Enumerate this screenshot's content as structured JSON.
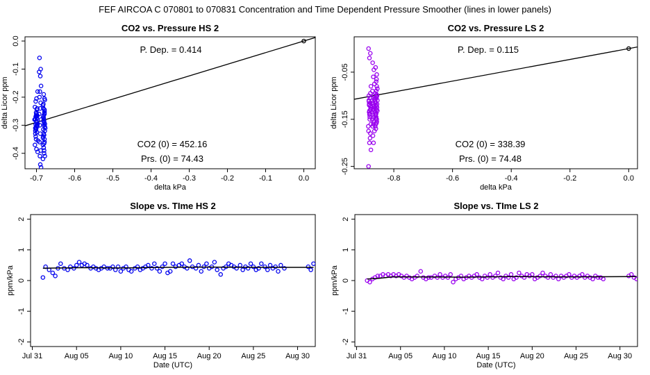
{
  "main_title": "FEF   AIRCOA C   070801 to 070831   Concentration and Time Dependent Pressure Smoother (lines in lower panels)",
  "chart_data": [
    {
      "id": "hs-pressure",
      "type": "scatter",
      "title": "CO2 vs. Pressure HS 2",
      "xlabel": "delta kPa",
      "ylabel": "delta Licor ppm",
      "xlim": [
        -0.73,
        0.03
      ],
      "ylim": [
        -0.455,
        0.015
      ],
      "xticks": [
        -0.7,
        -0.6,
        -0.5,
        -0.4,
        -0.3,
        -0.2,
        -0.1,
        0.0
      ],
      "xtick_labels": [
        "-0.7",
        "-0.6",
        "-0.5",
        "-0.4",
        "-0.3",
        "-0.2",
        "-0.1",
        "0.0"
      ],
      "yticks": [
        0.0,
        -0.1,
        -0.2,
        -0.3,
        -0.4
      ],
      "ytick_labels": [
        "0.0",
        "-0.1",
        "-0.2",
        "-0.3",
        "-0.4"
      ],
      "color": "#0000ee",
      "fit_line": {
        "slope": 0.414,
        "intercept": 0.0
      },
      "origin_point": [
        0.0,
        0.0
      ],
      "annotations": {
        "pdep": "P. Dep. =  0.414",
        "co2": "CO2 (0) =  452.16",
        "prs": "Prs. (0) = 74.43"
      },
      "x": [
        -0.701,
        -0.698,
        -0.705,
        -0.697,
        -0.703,
        -0.699,
        -0.702,
        -0.696,
        -0.704,
        -0.7,
        -0.701,
        -0.698,
        -0.703,
        -0.699,
        -0.702,
        -0.7,
        -0.697,
        -0.704,
        -0.701,
        -0.699,
        -0.7,
        -0.698,
        -0.703,
        -0.701,
        -0.699,
        -0.702,
        -0.7,
        -0.697,
        -0.704,
        -0.701,
        -0.699,
        -0.702,
        -0.698,
        -0.701,
        -0.7,
        -0.703,
        -0.699,
        -0.692,
        -0.689,
        -0.693,
        -0.69,
        -0.688,
        -0.691,
        -0.692,
        -0.689,
        -0.69,
        -0.693,
        -0.688,
        -0.691,
        -0.69,
        -0.692,
        -0.689,
        -0.691,
        -0.69,
        -0.688,
        -0.681,
        -0.678,
        -0.683,
        -0.679,
        -0.682,
        -0.68,
        -0.677,
        -0.681,
        -0.679,
        -0.683,
        -0.68,
        -0.678,
        -0.682,
        -0.679,
        -0.681,
        -0.68,
        -0.678,
        -0.682,
        -0.679,
        -0.681,
        -0.68,
        -0.683,
        -0.679,
        -0.681,
        -0.678,
        -0.682,
        -0.68,
        -0.679,
        -0.681,
        -0.68,
        -0.678,
        -0.682,
        -0.679,
        -0.683,
        -0.68
      ],
      "y": [
        -0.255,
        -0.265,
        -0.28,
        -0.295,
        -0.31,
        -0.325,
        -0.34,
        -0.355,
        -0.37,
        -0.385,
        -0.27,
        -0.3,
        -0.33,
        -0.245,
        -0.215,
        -0.205,
        -0.18,
        -0.28,
        -0.31,
        -0.29,
        -0.26,
        -0.24,
        -0.32,
        -0.35,
        -0.3,
        -0.27,
        -0.285,
        -0.395,
        -0.235,
        -0.265,
        -0.275,
        -0.298,
        -0.305,
        -0.315,
        -0.288,
        -0.278,
        -0.268,
        -0.06,
        -0.1,
        -0.11,
        -0.125,
        -0.16,
        -0.18,
        -0.2,
        -0.22,
        -0.24,
        -0.26,
        -0.28,
        -0.3,
        -0.33,
        -0.36,
        -0.39,
        -0.41,
        -0.44,
        -0.45,
        -0.19,
        -0.21,
        -0.23,
        -0.25,
        -0.27,
        -0.29,
        -0.31,
        -0.33,
        -0.35,
        -0.37,
        -0.39,
        -0.41,
        -0.24,
        -0.26,
        -0.28,
        -0.3,
        -0.32,
        -0.34,
        -0.36,
        -0.38,
        -0.4,
        -0.42,
        -0.255,
        -0.275,
        -0.295,
        -0.315,
        -0.335,
        -0.245,
        -0.265,
        -0.285,
        -0.305,
        -0.225,
        -0.205,
        -0.345,
        -0.365
      ]
    },
    {
      "id": "ls-pressure",
      "type": "scatter",
      "title": "CO2 vs. Pressure LS 2",
      "xlabel": "delta kPa",
      "ylabel": "delta Licor ppm",
      "xlim": [
        -0.935,
        0.03
      ],
      "ylim": [
        -0.255,
        0.025
      ],
      "xticks": [
        -0.8,
        -0.6,
        -0.4,
        -0.2,
        0.0
      ],
      "xtick_labels": [
        "-0.8",
        "-0.6",
        "-0.4",
        "-0.2",
        "0.0"
      ],
      "yticks": [
        -0.05,
        -0.15,
        -0.25
      ],
      "ytick_labels": [
        "-0.05",
        "-0.15",
        "-0.25"
      ],
      "color": "#9900ee",
      "fit_line": {
        "slope": 0.115,
        "intercept": 0.0
      },
      "origin_point": [
        0.0,
        0.0
      ],
      "annotations": {
        "pdep": "P. Dep. =  0.115",
        "co2": "CO2 (0) =  338.39",
        "prs": "Prs. (0) = 74.48"
      },
      "x": [
        -0.886,
        -0.88,
        -0.883,
        -0.878,
        -0.885,
        -0.881,
        -0.879,
        -0.884,
        -0.882,
        -0.887,
        -0.88,
        -0.883,
        -0.878,
        -0.886,
        -0.881,
        -0.884,
        -0.879,
        -0.882,
        -0.885,
        -0.88,
        -0.883,
        -0.878,
        -0.886,
        -0.881,
        -0.884,
        -0.879,
        -0.882,
        -0.885,
        -0.88,
        -0.883,
        -0.872,
        -0.868,
        -0.87,
        -0.866,
        -0.873,
        -0.869,
        -0.871,
        -0.867,
        -0.874,
        -0.87,
        -0.868,
        -0.872,
        -0.866,
        -0.871,
        -0.869,
        -0.873,
        -0.867,
        -0.87,
        -0.872,
        -0.868,
        -0.871,
        -0.869,
        -0.866,
        -0.873,
        -0.87,
        -0.862,
        -0.858,
        -0.86,
        -0.856,
        -0.863,
        -0.859,
        -0.861,
        -0.857,
        -0.862,
        -0.86,
        -0.858,
        -0.863,
        -0.856,
        -0.861,
        -0.859,
        -0.862,
        -0.857,
        -0.86,
        -0.858,
        -0.861,
        -0.863,
        -0.859,
        -0.856,
        -0.862,
        -0.86,
        -0.861,
        -0.858,
        -0.859,
        -0.857,
        -0.862,
        -0.86,
        -0.863,
        -0.858,
        -0.861,
        -0.859
      ],
      "y": [
        0.0,
        -0.01,
        -0.02,
        -0.08,
        -0.1,
        -0.115,
        -0.125,
        -0.135,
        -0.15,
        -0.165,
        -0.18,
        -0.2,
        -0.215,
        -0.25,
        -0.105,
        -0.12,
        -0.13,
        -0.145,
        -0.11,
        -0.095,
        -0.14,
        -0.16,
        -0.175,
        -0.19,
        -0.118,
        -0.128,
        -0.138,
        -0.112,
        -0.122,
        -0.132,
        -0.03,
        -0.045,
        -0.06,
        -0.075,
        -0.09,
        -0.105,
        -0.115,
        -0.125,
        -0.135,
        -0.145,
        -0.155,
        -0.165,
        -0.175,
        -0.185,
        -0.2,
        -0.11,
        -0.12,
        -0.13,
        -0.14,
        -0.1,
        -0.118,
        -0.128,
        -0.108,
        -0.15,
        -0.16,
        -0.04,
        -0.055,
        -0.07,
        -0.085,
        -0.095,
        -0.105,
        -0.115,
        -0.125,
        -0.135,
        -0.145,
        -0.155,
        -0.165,
        -0.11,
        -0.12,
        -0.13,
        -0.14,
        -0.1,
        -0.09,
        -0.15,
        -0.16,
        -0.112,
        -0.122,
        -0.132,
        -0.142,
        -0.102,
        -0.17,
        -0.08,
        -0.065,
        -0.118,
        -0.128,
        -0.138,
        -0.108,
        -0.098,
        -0.148,
        -0.158
      ]
    },
    {
      "id": "hs-time",
      "type": "line",
      "title": "Slope vs. TIme HS 2",
      "xlabel": "Date (UTC)",
      "ylabel": "ppm/kPa",
      "x_unit": "day of August 2007 (0 = Jul 31)",
      "xlim": [
        -0.2,
        32.0
      ],
      "ylim": [
        -2.15,
        2.15
      ],
      "xticks": [
        0,
        5,
        10,
        15,
        20,
        25,
        30
      ],
      "xtick_labels": [
        "Jul 31",
        "Aug 05",
        "Aug 10",
        "Aug 15",
        "Aug 20",
        "Aug 25",
        "Aug 30"
      ],
      "yticks": [
        -2,
        -1,
        0,
        1,
        2
      ],
      "ytick_labels": [
        "-2",
        "-1",
        "0",
        "1",
        "2"
      ],
      "color": "#0000ee",
      "points": [
        [
          1.2,
          0.1
        ],
        [
          1.5,
          0.45
        ],
        [
          1.9,
          0.35
        ],
        [
          2.3,
          0.25
        ],
        [
          2.6,
          0.15
        ],
        [
          2.9,
          0.4
        ],
        [
          3.2,
          0.55
        ],
        [
          3.6,
          0.4
        ],
        [
          4.0,
          0.35
        ],
        [
          4.3,
          0.45
        ],
        [
          4.7,
          0.4
        ],
        [
          5.0,
          0.5
        ],
        [
          5.3,
          0.6
        ],
        [
          5.6,
          0.5
        ],
        [
          5.9,
          0.55
        ],
        [
          6.2,
          0.5
        ],
        [
          6.6,
          0.4
        ],
        [
          6.9,
          0.45
        ],
        [
          7.2,
          0.4
        ],
        [
          7.5,
          0.35
        ],
        [
          7.8,
          0.4
        ],
        [
          8.1,
          0.45
        ],
        [
          8.5,
          0.4
        ],
        [
          8.8,
          0.4
        ],
        [
          9.1,
          0.45
        ],
        [
          9.4,
          0.35
        ],
        [
          9.7,
          0.45
        ],
        [
          10.0,
          0.3
        ],
        [
          10.3,
          0.4
        ],
        [
          10.6,
          0.45
        ],
        [
          10.9,
          0.35
        ],
        [
          11.2,
          0.3
        ],
        [
          11.6,
          0.4
        ],
        [
          11.9,
          0.45
        ],
        [
          12.2,
          0.35
        ],
        [
          12.5,
          0.4
        ],
        [
          12.8,
          0.45
        ],
        [
          13.1,
          0.5
        ],
        [
          13.5,
          0.4
        ],
        [
          13.8,
          0.55
        ],
        [
          14.1,
          0.4
        ],
        [
          14.4,
          0.3
        ],
        [
          14.7,
          0.45
        ],
        [
          15.0,
          0.55
        ],
        [
          15.3,
          0.25
        ],
        [
          15.6,
          0.3
        ],
        [
          15.9,
          0.55
        ],
        [
          16.2,
          0.45
        ],
        [
          16.6,
          0.5
        ],
        [
          16.9,
          0.55
        ],
        [
          17.2,
          0.45
        ],
        [
          17.5,
          0.4
        ],
        [
          17.8,
          0.65
        ],
        [
          18.1,
          0.45
        ],
        [
          18.5,
          0.4
        ],
        [
          18.8,
          0.5
        ],
        [
          19.1,
          0.3
        ],
        [
          19.4,
          0.45
        ],
        [
          19.7,
          0.55
        ],
        [
          20.0,
          0.4
        ],
        [
          20.3,
          0.45
        ],
        [
          20.6,
          0.6
        ],
        [
          20.9,
          0.35
        ],
        [
          21.3,
          0.2
        ],
        [
          21.6,
          0.4
        ],
        [
          21.9,
          0.45
        ],
        [
          22.2,
          0.55
        ],
        [
          22.5,
          0.5
        ],
        [
          22.8,
          0.45
        ],
        [
          23.1,
          0.4
        ],
        [
          23.5,
          0.5
        ],
        [
          23.8,
          0.35
        ],
        [
          24.1,
          0.45
        ],
        [
          24.4,
          0.4
        ],
        [
          24.7,
          0.55
        ],
        [
          25.0,
          0.45
        ],
        [
          25.3,
          0.35
        ],
        [
          25.6,
          0.4
        ],
        [
          25.9,
          0.55
        ],
        [
          26.3,
          0.45
        ],
        [
          26.6,
          0.35
        ],
        [
          26.9,
          0.5
        ],
        [
          27.2,
          0.4
        ],
        [
          27.5,
          0.45
        ],
        [
          27.8,
          0.3
        ],
        [
          28.1,
          0.5
        ],
        [
          28.5,
          0.4
        ],
        [
          31.2,
          0.45
        ],
        [
          31.5,
          0.35
        ],
        [
          31.8,
          0.55
        ]
      ],
      "smoother": [
        [
          1.2,
          0.4
        ],
        [
          3.0,
          0.41
        ],
        [
          6.0,
          0.42
        ],
        [
          10.0,
          0.41
        ],
        [
          15.0,
          0.43
        ],
        [
          20.0,
          0.44
        ],
        [
          25.0,
          0.43
        ],
        [
          31.8,
          0.43
        ]
      ]
    },
    {
      "id": "ls-time",
      "type": "line",
      "title": "Slope vs. TIme LS 2",
      "xlabel": "Date (UTC)",
      "ylabel": "ppm/kPa",
      "x_unit": "day of August 2007 (0 = Jul 31)",
      "xlim": [
        -0.2,
        32.0
      ],
      "ylim": [
        -2.15,
        2.15
      ],
      "xticks": [
        0,
        5,
        10,
        15,
        20,
        25,
        30
      ],
      "xtick_labels": [
        "Jul 31",
        "Aug 05",
        "Aug 10",
        "Aug 15",
        "Aug 20",
        "Aug 25",
        "Aug 30"
      ],
      "yticks": [
        -2,
        -1,
        0,
        1,
        2
      ],
      "ytick_labels": [
        "-2",
        "-1",
        "0",
        "1",
        "2"
      ],
      "color": "#9900ee",
      "points": [
        [
          1.2,
          0.0
        ],
        [
          1.5,
          -0.05
        ],
        [
          1.8,
          0.05
        ],
        [
          2.1,
          0.1
        ],
        [
          2.4,
          0.15
        ],
        [
          2.7,
          0.15
        ],
        [
          3.0,
          0.2
        ],
        [
          3.3,
          0.15
        ],
        [
          3.6,
          0.2
        ],
        [
          3.9,
          0.15
        ],
        [
          4.2,
          0.2
        ],
        [
          4.5,
          0.15
        ],
        [
          4.8,
          0.2
        ],
        [
          5.1,
          0.15
        ],
        [
          5.4,
          0.1
        ],
        [
          5.7,
          0.15
        ],
        [
          6.0,
          0.1
        ],
        [
          6.3,
          0.05
        ],
        [
          6.6,
          0.1
        ],
        [
          6.9,
          0.15
        ],
        [
          7.3,
          0.3
        ],
        [
          7.6,
          0.1
        ],
        [
          7.9,
          0.05
        ],
        [
          8.2,
          0.1
        ],
        [
          8.5,
          0.1
        ],
        [
          8.9,
          0.15
        ],
        [
          9.2,
          0.1
        ],
        [
          9.5,
          0.2
        ],
        [
          9.8,
          0.1
        ],
        [
          10.1,
          0.15
        ],
        [
          10.4,
          0.1
        ],
        [
          10.7,
          0.2
        ],
        [
          11.0,
          -0.05
        ],
        [
          11.3,
          0.05
        ],
        [
          11.6,
          0.1
        ],
        [
          11.9,
          0.15
        ],
        [
          12.2,
          0.05
        ],
        [
          12.5,
          0.1
        ],
        [
          12.8,
          0.15
        ],
        [
          13.1,
          0.1
        ],
        [
          13.4,
          0.15
        ],
        [
          13.7,
          0.2
        ],
        [
          14.0,
          0.1
        ],
        [
          14.3,
          0.05
        ],
        [
          14.6,
          0.15
        ],
        [
          14.9,
          0.1
        ],
        [
          15.2,
          0.2
        ],
        [
          15.5,
          0.1
        ],
        [
          15.8,
          0.15
        ],
        [
          16.1,
          0.25
        ],
        [
          16.4,
          0.1
        ],
        [
          16.7,
          0.05
        ],
        [
          17.0,
          0.15
        ],
        [
          17.3,
          0.1
        ],
        [
          17.6,
          0.2
        ],
        [
          17.9,
          0.05
        ],
        [
          18.2,
          0.1
        ],
        [
          18.5,
          0.25
        ],
        [
          18.8,
          0.15
        ],
        [
          19.1,
          0.1
        ],
        [
          19.4,
          0.2
        ],
        [
          19.7,
          0.15
        ],
        [
          20.0,
          0.2
        ],
        [
          20.3,
          0.05
        ],
        [
          20.6,
          0.1
        ],
        [
          20.9,
          0.15
        ],
        [
          21.2,
          0.25
        ],
        [
          21.5,
          0.15
        ],
        [
          21.8,
          0.1
        ],
        [
          22.1,
          0.2
        ],
        [
          22.4,
          0.1
        ],
        [
          22.7,
          0.15
        ],
        [
          23.0,
          0.05
        ],
        [
          23.3,
          0.15
        ],
        [
          23.6,
          0.1
        ],
        [
          23.9,
          0.15
        ],
        [
          24.2,
          0.2
        ],
        [
          24.5,
          0.1
        ],
        [
          24.8,
          0.15
        ],
        [
          25.1,
          0.1
        ],
        [
          25.4,
          0.15
        ],
        [
          25.7,
          0.2
        ],
        [
          26.0,
          0.1
        ],
        [
          26.3,
          0.15
        ],
        [
          26.6,
          0.1
        ],
        [
          26.9,
          0.05
        ],
        [
          27.2,
          0.15
        ],
        [
          27.5,
          0.1
        ],
        [
          27.8,
          0.1
        ],
        [
          28.1,
          0.05
        ],
        [
          31.0,
          0.15
        ],
        [
          31.3,
          0.2
        ],
        [
          31.6,
          0.1
        ],
        [
          31.9,
          0.05
        ]
      ],
      "smoother": [
        [
          1.2,
          0.05
        ],
        [
          2.5,
          0.07
        ],
        [
          4.0,
          0.12
        ],
        [
          7.0,
          0.12
        ],
        [
          12.0,
          0.11
        ],
        [
          18.0,
          0.13
        ],
        [
          24.0,
          0.12
        ],
        [
          31.9,
          0.13
        ]
      ]
    }
  ]
}
